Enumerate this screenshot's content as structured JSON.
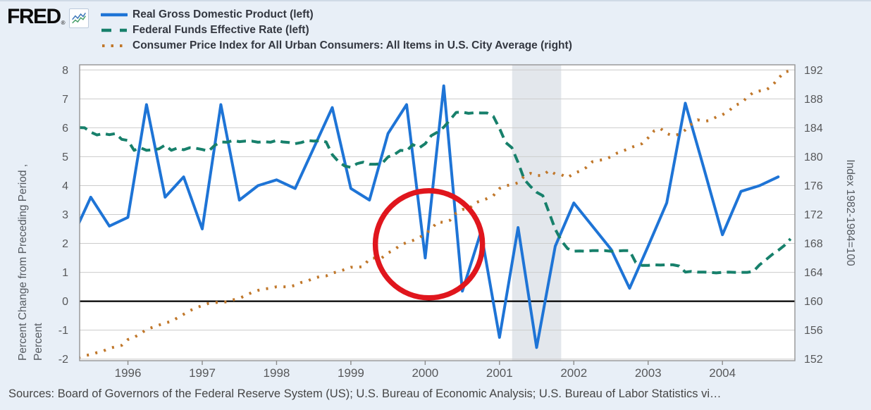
{
  "header": {
    "logo_text": "FRED",
    "registered_symbol": "®"
  },
  "legend": {
    "items": [
      {
        "id": "real-gdp",
        "label": "Real Gross Domestic Product (left)",
        "color": "#1e74d6",
        "style": "solid"
      },
      {
        "id": "fed-funds",
        "label": "Federal Funds Effective Rate (left)",
        "color": "#17806b",
        "style": "dashed"
      },
      {
        "id": "cpi",
        "label": "Consumer Price Index for All Urban Consumers: All Items in U.S. City Average (right)",
        "color": "#c0772a",
        "style": "dotted"
      }
    ]
  },
  "axis_left": {
    "title_line1": "Percent Change from Preceding Period ,",
    "title_line2": "Percent",
    "ticks": [
      8,
      7,
      6,
      5,
      4,
      3,
      2,
      1,
      0,
      -1,
      -2
    ]
  },
  "axis_right": {
    "title": "Index 1982-1984=100",
    "ticks": [
      192,
      188,
      184,
      180,
      176,
      172,
      168,
      164,
      160,
      156,
      152
    ]
  },
  "x_axis": {
    "year_labels": [
      "1996",
      "1997",
      "1998",
      "1999",
      "2000",
      "2001",
      "2002",
      "2003",
      "2004"
    ]
  },
  "footer": {
    "sources_text": "Sources: Board of Governors of the Federal Reserve System (US); U.S. Bureau of Economic Analysis; U.S. Bureau of Labor Statistics vi…"
  },
  "colors": {
    "background": "#e8eff7",
    "plot_background": "#ffffff",
    "gridline": "#cccccc",
    "zero_line": "#000000",
    "plot_border": "#949494",
    "recession_band": "#e3e7ec",
    "annotation_red": "#e0161d",
    "tick_text": "#57585a",
    "legend_text": "#333740",
    "source_text": "#454545"
  },
  "chart_data": {
    "type": "line",
    "left_ylim": [
      -2,
      8
    ],
    "right_ylim": [
      152,
      192
    ],
    "x_domain_years": [
      1995.35,
      2004.975
    ],
    "grid": "horizontal",
    "legend_position": "top-left",
    "recession_band_years": [
      2001.17,
      2001.83
    ],
    "annotation_circle": {
      "center_year": 2000.05,
      "center_value_left_axis": 1.97,
      "radius_px": 76
    },
    "series": [
      {
        "id": "real-gdp",
        "name": "Real Gross Domestic Product (left)",
        "axis": "left",
        "frequency": "quarterly",
        "style": "solid",
        "color": "#1e74d6",
        "start_year": 1995.25,
        "step_years": 0.25,
        "values": [
          2.2,
          3.6,
          2.6,
          2.9,
          6.8,
          3.6,
          4.3,
          2.5,
          6.8,
          3.5,
          4.0,
          4.2,
          3.9,
          5.3,
          6.7,
          3.9,
          3.5,
          5.8,
          6.8,
          1.5,
          7.45,
          0.35,
          2.4,
          -1.25,
          2.55,
          -1.6,
          1.9,
          3.4,
          2.6,
          1.8,
          0.45,
          1.9,
          3.4,
          6.85,
          4.6,
          2.3,
          3.8,
          4.0,
          4.3
        ]
      },
      {
        "id": "fed-funds",
        "name": "Federal Funds Effective Rate (left)",
        "axis": "left",
        "frequency": "monthly",
        "style": "dashed",
        "color": "#17806b",
        "start_year": 1995.3333,
        "step_years": 0.0833333,
        "values": [
          6.01,
          6.0,
          5.85,
          5.75,
          5.8,
          5.76,
          5.8,
          5.6,
          5.56,
          5.22,
          5.31,
          5.22,
          5.24,
          5.27,
          5.4,
          5.22,
          5.3,
          5.24,
          5.31,
          5.29,
          5.25,
          5.19,
          5.39,
          5.51,
          5.5,
          5.56,
          5.52,
          5.54,
          5.54,
          5.5,
          5.52,
          5.5,
          5.56,
          5.51,
          5.49,
          5.45,
          5.49,
          5.56,
          5.54,
          5.55,
          5.51,
          5.07,
          4.83,
          4.68,
          4.63,
          4.76,
          4.81,
          4.74,
          4.74,
          4.76,
          4.99,
          5.07,
          5.22,
          5.2,
          5.42,
          5.3,
          5.45,
          5.73,
          5.85,
          6.02,
          6.27,
          6.53,
          6.54,
          6.5,
          6.52,
          6.51,
          6.51,
          6.4,
          5.98,
          5.49,
          5.31,
          4.8,
          4.21,
          3.97,
          3.77,
          3.65,
          3.07,
          2.49,
          2.09,
          1.82,
          1.73,
          1.74,
          1.73,
          1.75,
          1.75,
          1.75,
          1.73,
          1.74,
          1.75,
          1.75,
          1.34,
          1.24,
          1.24,
          1.26,
          1.25,
          1.26,
          1.26,
          1.22,
          1.01,
          1.03,
          1.01,
          1.01,
          1.0,
          0.98,
          1.0,
          1.01,
          1.0,
          1.0,
          1.0,
          1.03,
          1.26,
          1.43,
          1.61,
          1.76,
          1.93,
          2.16
        ]
      },
      {
        "id": "cpi",
        "name": "Consumer Price Index for All Urban Consumers: All Items in U.S. City Average (right)",
        "axis": "right",
        "frequency": "monthly",
        "style": "dotted",
        "color": "#c0772a",
        "start_year": 1995.3333,
        "step_years": 0.0833333,
        "values": [
          152.2,
          152.5,
          152.6,
          152.9,
          153.1,
          153.5,
          153.7,
          153.9,
          154.7,
          155.0,
          155.5,
          156.1,
          156.4,
          156.7,
          157.0,
          157.2,
          157.7,
          158.2,
          158.7,
          159.1,
          159.4,
          159.7,
          159.8,
          159.9,
          159.9,
          160.2,
          160.4,
          160.8,
          161.2,
          161.5,
          161.7,
          161.8,
          162.0,
          162.0,
          162.0,
          162.2,
          162.6,
          162.8,
          163.2,
          163.4,
          163.5,
          163.9,
          164.1,
          164.4,
          164.7,
          164.7,
          164.8,
          165.9,
          166.0,
          166.0,
          166.7,
          167.1,
          167.8,
          168.1,
          168.4,
          168.8,
          169.3,
          170.0,
          171.0,
          170.9,
          171.2,
          172.2,
          172.7,
          172.7,
          173.6,
          173.9,
          174.2,
          174.6,
          175.6,
          176.0,
          176.1,
          176.4,
          177.3,
          177.7,
          177.4,
          177.4,
          178.1,
          177.6,
          177.5,
          177.1,
          177.7,
          178.0,
          178.5,
          179.3,
          179.5,
          179.6,
          180.0,
          180.5,
          180.8,
          181.2,
          181.5,
          181.8,
          182.6,
          183.6,
          183.9,
          183.2,
          182.9,
          183.1,
          183.7,
          184.5,
          185.1,
          184.9,
          185.0,
          185.5,
          185.8,
          186.3,
          187.1,
          187.4,
          188.2,
          188.9,
          189.1,
          189.2,
          189.8,
          190.8,
          191.7,
          191.9
        ]
      }
    ]
  }
}
